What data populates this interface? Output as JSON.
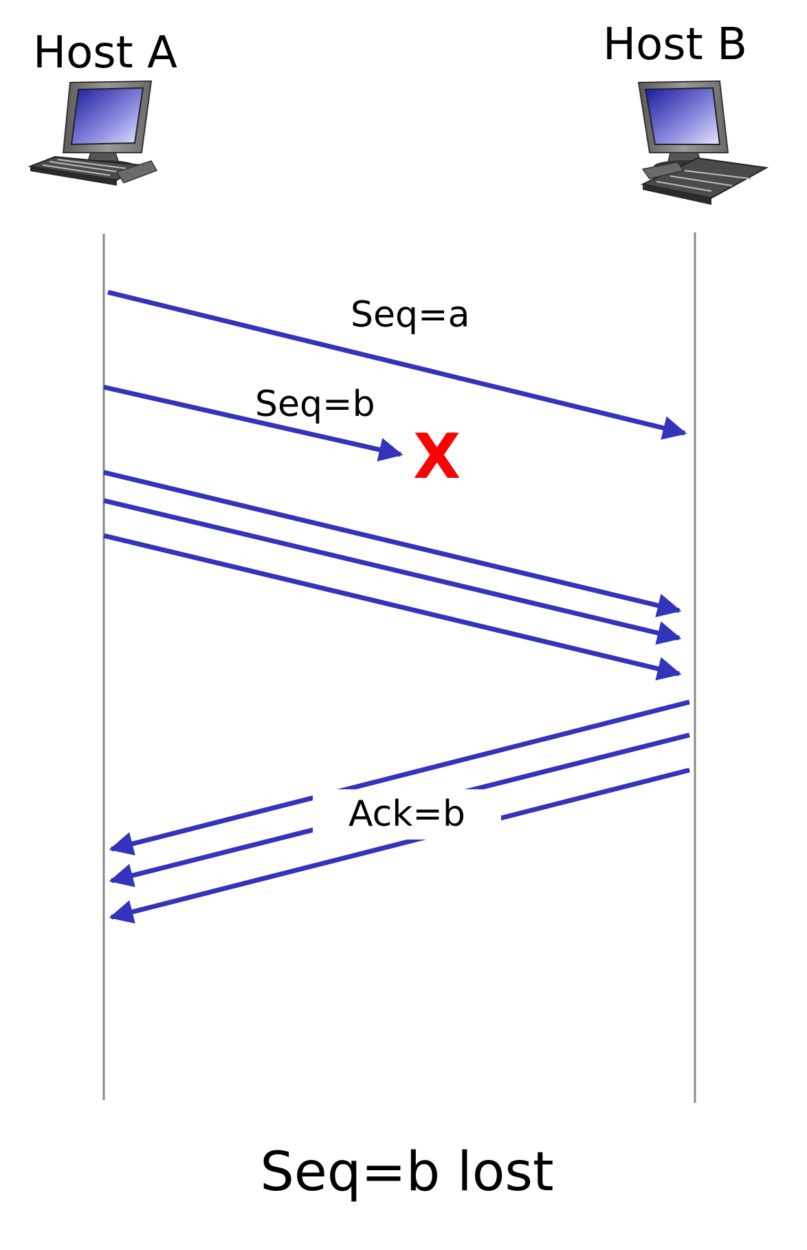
{
  "hosts": {
    "a": {
      "label": "Host A",
      "icon": "desktop-computer-icon"
    },
    "b": {
      "label": "Host B",
      "icon": "desktop-computer-icon"
    }
  },
  "messages": {
    "seq_a": "Seq=a",
    "seq_b": "Seq=b",
    "ack_b": "Ack=b"
  },
  "lost_marker": "X",
  "caption": "Seq=b lost",
  "colors": {
    "arrow": "#3333bb",
    "timeline": "#888888",
    "lost": "#ff0000"
  }
}
